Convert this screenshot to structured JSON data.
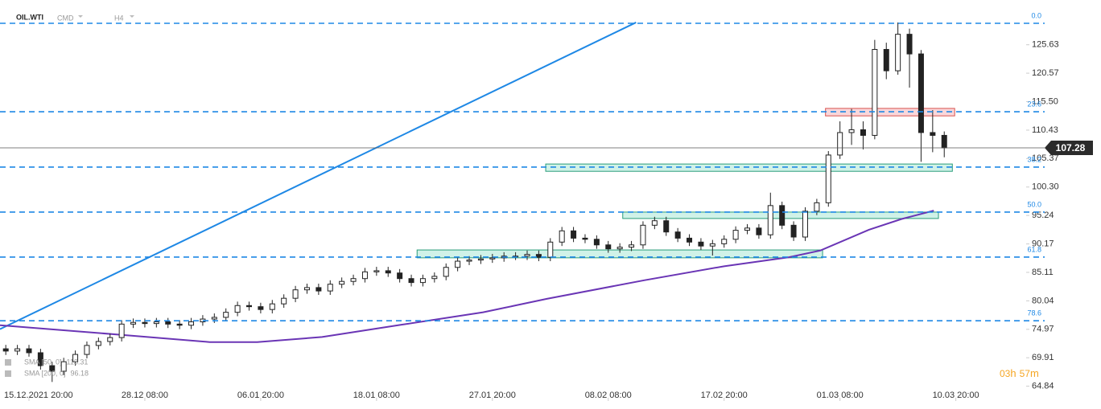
{
  "chart_data": {
    "type": "candlestick",
    "symbol": "OIL.WTI",
    "market": "CMD",
    "interval": "H4",
    "xlim": [
      0,
      88.5
    ],
    "ylim": [
      62.5,
      133.6
    ],
    "xticks": [
      {
        "value": 2.5,
        "label": "15.12.2021 20:00"
      },
      {
        "value": 12.5,
        "label": "28.12 08:00"
      },
      {
        "value": 22.5,
        "label": "06.01 20:00"
      },
      {
        "value": 32.5,
        "label": "18.01 08:00"
      },
      {
        "value": 42.5,
        "label": "27.01 20:00"
      },
      {
        "value": 52.5,
        "label": "08.02 08:00"
      },
      {
        "value": 62.5,
        "label": "17.02 20:00"
      },
      {
        "value": 72.5,
        "label": "01.03 08:00"
      },
      {
        "value": 82.5,
        "label": "10.03 20:00"
      }
    ],
    "yticks": [
      125.63,
      120.57,
      {
        "value": 115.5,
        "label": "115.50"
      },
      110.43,
      105.37,
      {
        "value": 100.3,
        "label": "100.30"
      },
      95.24,
      90.17,
      85.11,
      80.04,
      74.97,
      69.91,
      64.84
    ],
    "x": [
      0.5,
      1.5,
      2.5,
      3.5,
      4.5,
      5.5,
      6.5,
      7.5,
      8.5,
      9.5,
      10.5,
      11.5,
      12.5,
      13.5,
      14.5,
      15.5,
      16.5,
      17.5,
      18.5,
      19.5,
      20.5,
      21.5,
      22.5,
      23.5,
      24.5,
      25.5,
      26.5,
      27.5,
      28.5,
      29.5,
      30.5,
      31.5,
      32.5,
      33.5,
      34.5,
      35.5,
      36.5,
      37.5,
      38.5,
      39.5,
      40.5,
      41.5,
      42.5,
      43.5,
      44.5,
      45.5,
      46.5,
      47.5,
      48.5,
      49.5,
      50.5,
      51.5,
      52.5,
      53.5,
      54.5,
      55.5,
      56.5,
      57.5,
      58.5,
      59.5,
      60.5,
      61.5,
      62.5,
      63.5,
      64.5,
      65.5,
      66.5,
      67.5,
      68.5,
      69.5,
      70.5,
      71.5,
      72.5,
      73.5,
      74.5,
      75.5,
      76.5,
      77.5,
      78.5,
      79.5,
      80.5,
      81.5
    ],
    "candles": [
      [
        71.5,
        72.2,
        70.4,
        71.1
      ],
      [
        71.1,
        72.2,
        70.4,
        71.5
      ],
      [
        71.5,
        72.2,
        70.1,
        70.8
      ],
      [
        70.8,
        71.5,
        67.8,
        68.5
      ],
      [
        68.5,
        69.2,
        65.6,
        67.5
      ],
      [
        67.5,
        69.9,
        66.8,
        69.2
      ],
      [
        69.2,
        71.2,
        68.5,
        70.5
      ],
      [
        70.5,
        72.8,
        69.8,
        72.1
      ],
      [
        72.1,
        73.5,
        71.4,
        72.8
      ],
      [
        72.8,
        74.2,
        72.1,
        73.5
      ],
      [
        73.5,
        76.6,
        72.8,
        75.9
      ],
      [
        75.9,
        76.9,
        75.2,
        76.2
      ],
      [
        76.2,
        76.9,
        75.3,
        76.0
      ],
      [
        76.0,
        77.0,
        75.3,
        76.3
      ],
      [
        76.3,
        77.0,
        75.2,
        75.9
      ],
      [
        75.9,
        76.6,
        75.0,
        75.7
      ],
      [
        75.7,
        77.0,
        75.0,
        76.3
      ],
      [
        76.3,
        77.5,
        75.6,
        76.8
      ],
      [
        76.8,
        77.8,
        76.1,
        77.1
      ],
      [
        77.1,
        78.7,
        76.4,
        78.0
      ],
      [
        78.0,
        79.9,
        77.3,
        79.2
      ],
      [
        79.2,
        79.9,
        78.3,
        79.0
      ],
      [
        79.0,
        79.7,
        77.8,
        78.5
      ],
      [
        78.5,
        80.2,
        77.8,
        79.5
      ],
      [
        79.5,
        81.2,
        78.8,
        80.5
      ],
      [
        80.5,
        82.7,
        79.8,
        82.0
      ],
      [
        82.0,
        83.1,
        81.3,
        82.4
      ],
      [
        82.4,
        83.1,
        81.1,
        81.8
      ],
      [
        81.8,
        83.7,
        81.1,
        83.0
      ],
      [
        83.0,
        84.2,
        82.3,
        83.5
      ],
      [
        83.5,
        84.7,
        82.8,
        84.0
      ],
      [
        84.0,
        85.9,
        83.3,
        85.2
      ],
      [
        85.2,
        86.1,
        84.5,
        85.4
      ],
      [
        85.4,
        86.1,
        84.3,
        85.0
      ],
      [
        85.0,
        85.7,
        83.3,
        84.0
      ],
      [
        84.0,
        84.7,
        82.6,
        83.3
      ],
      [
        83.3,
        84.7,
        82.6,
        84.0
      ],
      [
        84.0,
        85.1,
        83.3,
        84.4
      ],
      [
        84.4,
        86.7,
        83.7,
        86.0
      ],
      [
        86.0,
        87.8,
        85.3,
        87.1
      ],
      [
        87.1,
        88.0,
        86.4,
        87.3
      ],
      [
        87.3,
        88.2,
        86.6,
        87.5
      ],
      [
        87.5,
        88.4,
        86.8,
        87.7
      ],
      [
        87.7,
        88.7,
        87.0,
        88.0
      ],
      [
        88.0,
        88.7,
        87.3,
        88.0
      ],
      [
        88.0,
        89.0,
        87.3,
        88.3
      ],
      [
        88.3,
        89.0,
        87.1,
        87.8
      ],
      [
        87.8,
        91.2,
        87.1,
        90.5
      ],
      [
        90.5,
        93.2,
        89.8,
        92.5
      ],
      [
        92.5,
        93.2,
        90.5,
        91.2
      ],
      [
        91.2,
        91.9,
        90.3,
        91.0
      ],
      [
        91.0,
        91.7,
        89.3,
        90.0
      ],
      [
        90.0,
        90.7,
        88.6,
        89.3
      ],
      [
        89.3,
        90.3,
        88.6,
        89.6
      ],
      [
        89.6,
        90.7,
        88.9,
        90.0
      ],
      [
        90.0,
        94.2,
        89.3,
        93.5
      ],
      [
        93.5,
        95.0,
        92.8,
        94.3
      ],
      [
        94.3,
        95.0,
        91.6,
        92.3
      ],
      [
        92.3,
        93.0,
        90.5,
        91.2
      ],
      [
        91.2,
        91.9,
        89.8,
        90.5
      ],
      [
        90.5,
        91.2,
        89.1,
        89.8
      ],
      [
        89.8,
        90.9,
        88.1,
        90.2
      ],
      [
        90.2,
        91.7,
        89.5,
        91.0
      ],
      [
        91.0,
        93.3,
        90.3,
        92.6
      ],
      [
        92.6,
        93.7,
        91.9,
        93.0
      ],
      [
        93.0,
        93.7,
        91.1,
        91.8
      ],
      [
        91.8,
        99.3,
        91.1,
        97.0
      ],
      [
        97.0,
        97.7,
        92.8,
        93.5
      ],
      [
        93.5,
        94.2,
        90.7,
        91.4
      ],
      [
        91.4,
        96.7,
        90.7,
        96.0
      ],
      [
        96.0,
        98.2,
        95.3,
        97.5
      ],
      [
        97.5,
        106.7,
        96.8,
        106.0
      ],
      [
        106.0,
        112.0,
        105.3,
        110.0
      ],
      [
        110.0,
        114.2,
        107.8,
        110.5
      ],
      [
        110.5,
        112.0,
        107.0,
        109.5
      ],
      [
        109.5,
        126.5,
        108.8,
        124.8
      ],
      [
        124.8,
        126.0,
        119.5,
        121.0
      ],
      [
        121.0,
        129.6,
        120.3,
        127.5
      ],
      [
        127.5,
        128.5,
        118.0,
        124.0
      ],
      [
        124.0,
        124.7,
        104.8,
        110.0
      ],
      [
        110.0,
        114.0,
        106.5,
        109.5
      ],
      [
        109.5,
        110.2,
        105.6,
        107.28
      ]
    ],
    "up_color": "#ffffff",
    "down_color": "#222222",
    "last_price": 107.28,
    "sma200": {
      "color": "#6a35b5",
      "x": [
        0,
        10.4,
        18.1,
        22.2,
        27.8,
        34.7,
        41.7,
        47.2,
        55.6,
        62.5,
        68.1,
        70.8,
        75,
        77.8,
        80.6
      ],
      "values": [
        75.7,
        74.0,
        72.7,
        72.7,
        73.6,
        75.8,
        78.0,
        80.4,
        83.7,
        86.2,
        87.8,
        89.0,
        92.7,
        94.6,
        96.1
      ]
    },
    "trendline": {
      "color": "#1e88e5",
      "x": [
        0,
        54.9
      ],
      "values": [
        75.0,
        129.6
      ]
    },
    "fib": {
      "color": "#1e88e5",
      "levels": [
        {
          "label": "0.0",
          "price": 129.45
        },
        {
          "label": "23.6",
          "price": 113.7
        },
        {
          "label": "38.2",
          "price": 103.85
        },
        {
          "label": "50.0",
          "price": 95.84
        },
        {
          "label": "61.8",
          "price": 87.83
        },
        {
          "label": "78.6",
          "price": 76.5
        }
      ]
    },
    "zones": [
      {
        "x": [
          71.25,
          82.4
        ],
        "y": [
          112.97,
          114.3
        ],
        "color": "#f4b6bb",
        "border": "#d9534f"
      },
      {
        "x": [
          47.1,
          82.2
        ],
        "y": [
          103.1,
          104.4
        ],
        "color": "#a9e8d6",
        "border": "#2a9d7a"
      },
      {
        "x": [
          53.75,
          81.0
        ],
        "y": [
          94.7,
          95.84
        ],
        "color": "#a9e8d6",
        "border": "#2a9d7a"
      },
      {
        "x": [
          36.0,
          71.0
        ],
        "y": [
          87.7,
          89.1
        ],
        "color": "#a9e8d6",
        "border": "#2a9d7a"
      }
    ],
    "indicators": [
      {
        "name": "SMA [50, 0]",
        "value": 113.31
      },
      {
        "name": "SMA [200, 0]",
        "value": 96.18
      }
    ],
    "countdown": [
      "03",
      "h",
      "57",
      "m"
    ]
  }
}
